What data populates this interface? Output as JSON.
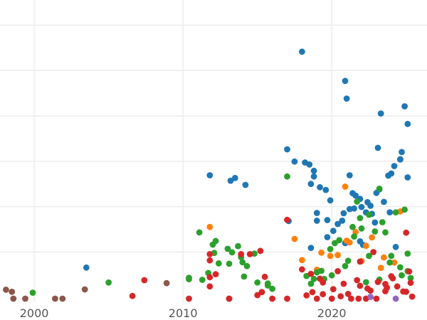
{
  "chart_data": {
    "type": "scatter",
    "title": "",
    "xlabel": "",
    "ylabel": "",
    "xlim": [
      1997.7,
      2026.4
    ],
    "ylim": [
      0,
      1000
    ],
    "grid": true,
    "legend": "none",
    "x_ticks": [
      2000,
      2010,
      2020
    ],
    "x_tick_labels": [
      "2000",
      "2010",
      "2020"
    ],
    "y_gridlines": [
      156,
      308,
      460,
      612,
      764,
      916
    ],
    "series": [
      {
        "color": "#1f77b4",
        "x": [
          2003.5,
          2011.8,
          2013.2,
          2013.5,
          2014.2,
          2017.0,
          2017.5,
          2017.1,
          2018.0,
          2018.2,
          2018.5,
          2018.8,
          2018.6,
          2018.8,
          2019.0,
          2019.2,
          2019.6,
          2019.9,
          2020.9,
          2021.0,
          2021.2,
          2021.4,
          2021.6,
          2021.9,
          2022.3,
          2022.7,
          2023.1,
          2023.3,
          2024.2,
          2024.6,
          2024.9,
          2025.1,
          2024.7,
          2025.1,
          2024.0,
          2023.8,
          2023.5,
          2023.0,
          2022.6,
          2022.0,
          2021.5,
          2020.7,
          2020.1,
          2019.7,
          2019.0,
          2018.6,
          2020.4,
          2020.8,
          2021.2,
          2022.4,
          2022.9,
          2023.9,
          2024.3,
          2021.9,
          2022.1,
          2020.9,
          2019.7,
          2023.2,
          2024.6
        ],
        "y": [
          104,
          413,
          395,
          404,
          381,
          500,
          459,
          260,
          827,
          456,
          449,
          409,
          384,
          428,
          287,
          373,
          364,
          329,
          729,
          670,
          413,
          353,
          345,
          334,
          289,
          284,
          505,
          620,
          444,
          466,
          644,
          585,
          491,
          406,
          419,
          412,
          324,
          354,
          311,
          307,
          302,
          261,
          227,
          263,
          261,
          170,
          250,
          286,
          300,
          323,
          255,
          289,
          173,
          192,
          180,
          186,
          206,
          366,
          467
        ]
      },
      {
        "color": "#ff7f0e",
        "x": [
          2011.8,
          2017.5,
          2018.0,
          2019.0,
          2019.9,
          2020.9,
          2021.2,
          2021.6,
          2022.3,
          2022.7,
          2023.5,
          2024.6,
          2020.4,
          2021.0,
          2022.0,
          2019.3,
          2023.3,
          2024.2
        ],
        "y": [
          240,
          200,
          129,
          97,
          143,
          375,
          188,
          223,
          177,
          205,
          138,
          292,
          146,
          194,
          126,
          154,
          103,
          121
        ]
      },
      {
        "color": "#2ca02c",
        "x": [
          1999.9,
          2005.0,
          2010.4,
          2011.1,
          2011.3,
          2012.1,
          2012.4,
          2013.0,
          2013.3,
          2013.7,
          2013.9,
          2014.3,
          2014.8,
          2015.0,
          2015.3,
          2015.7,
          2017.0,
          2012.0,
          2012.2,
          2013.1,
          2014.0,
          2011.7,
          2021.7,
          2021.9,
          2022.5,
          2023.2,
          2023.4,
          2024.3,
          2024.9,
          2025.1,
          2022.0,
          2022.9,
          2023.6,
          2024.6,
          2019.9,
          2020.2,
          2021.1,
          2024.0,
          2020.5,
          2021.5,
          2018.3,
          2018.8,
          2019.3,
          2020.0,
          2022.5,
          2023.9,
          2015.7,
          2014.1,
          2010.4,
          2016.0,
          2021.4,
          2018.6,
          2019.5,
          2025.3,
          2022.3,
          2023.2,
          2024.7,
          2025.1,
          2019.0,
          2020.9
        ],
        "y": [
          20,
          54,
          70,
          222,
          63,
          153,
          118,
          167,
          155,
          176,
          139,
          109,
          151,
          54,
          22,
          51,
          409,
          181,
          193,
          117,
          122,
          86,
          325,
          270,
          281,
          368,
          256,
          289,
          298,
          151,
          235,
          225,
          222,
          105,
          166,
          186,
          127,
          143,
          196,
          208,
          76,
          66,
          93,
          78,
          143,
          121,
          44,
          74,
          65,
          33,
          240,
          50,
          66,
          69,
          55,
          64,
          78,
          92,
          88,
          109
        ]
      },
      {
        "color": "#d62728",
        "x": [
          2006.6,
          2007.4,
          2010.4,
          2011.8,
          2011.8,
          2012.2,
          2013.1,
          2013.9,
          2014.5,
          2015.3,
          2015.2,
          2015.5,
          2016.0,
          2017.0,
          2017.0,
          2011.8,
          2018.0,
          2018.7,
          2019.4,
          2020.1,
          2020.8,
          2021.1,
          2021.7,
          2022.4,
          2023.1,
          2023.6,
          2024.1,
          2024.8,
          2025.2,
          2025.4,
          2019.2,
          2021.9,
          2022.8,
          2023.7,
          2025.0,
          2018.3,
          2019.0,
          2020.0,
          2020.6,
          2021.3,
          2021.9,
          2022.6,
          2023.0,
          2023.6,
          2024.4,
          2025.0,
          2018.6,
          2019.4,
          2020.4,
          2021.8,
          2022.3,
          2024.0,
          2025.3,
          2013.1,
          2015.0,
          2011.8
        ],
        "y": [
          9,
          62,
          0,
          72,
          149,
          82,
          0,
          149,
          149,
          22,
          160,
          73,
          0,
          264,
          0,
          41,
          98,
          22,
          54,
          32,
          50,
          16,
          62,
          34,
          56,
          49,
          68,
          24,
          91,
          7,
          67,
          124,
          156,
          37,
          221,
          11,
          0,
          0,
          8,
          0,
          43,
          27,
          0,
          25,
          41,
          23,
          83,
          15,
          92,
          0,
          0,
          75,
          53,
          0,
          12,
          128
        ]
      },
      {
        "color": "#8c564b",
        "x": [
          1998.1,
          1998.5,
          1998.6,
          1999.4,
          2001.4,
          2001.9,
          2003.4,
          2008.9
        ],
        "y": [
          30,
          23,
          0,
          0,
          0,
          0,
          31,
          52
        ]
      },
      {
        "color": "#9467bd",
        "x": [
          2022.6,
          2024.3
        ],
        "y": [
          6,
          0
        ]
      }
    ]
  }
}
